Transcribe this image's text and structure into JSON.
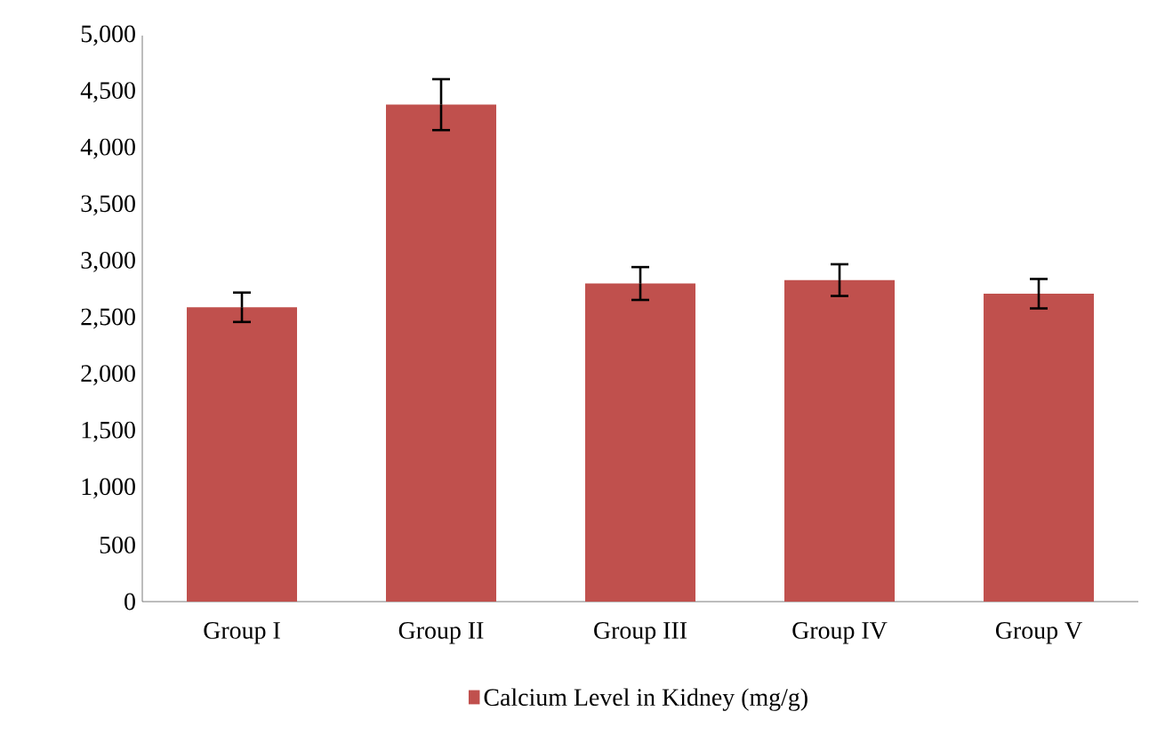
{
  "chart_data": {
    "type": "bar",
    "categories": [
      "Group I",
      "Group II",
      "Group III",
      "Group IV",
      "Group V"
    ],
    "series": [
      {
        "name": "Calcium Level in Kidney (mg/g)",
        "color": "#c0504d",
        "values": [
          2600,
          4390,
          2810,
          2840,
          2720
        ],
        "errors": [
          130,
          225,
          145,
          140,
          130
        ]
      }
    ],
    "ylim": [
      0,
      5000
    ],
    "yticks": [
      {
        "value": 0,
        "label": "0"
      },
      {
        "value": 500,
        "label": "500"
      },
      {
        "value": 1000,
        "label": "1,000"
      },
      {
        "value": 1500,
        "label": "1,500"
      },
      {
        "value": 2000,
        "label": "2,000"
      },
      {
        "value": 2500,
        "label": "2,500"
      },
      {
        "value": 3000,
        "label": "3,000"
      },
      {
        "value": 3500,
        "label": "3,500"
      },
      {
        "value": 4000,
        "label": "4,000"
      },
      {
        "value": 4500,
        "label": "4,500"
      },
      {
        "value": 5000,
        "label": "5,000"
      }
    ],
    "grid": false,
    "legend": "bottom"
  }
}
